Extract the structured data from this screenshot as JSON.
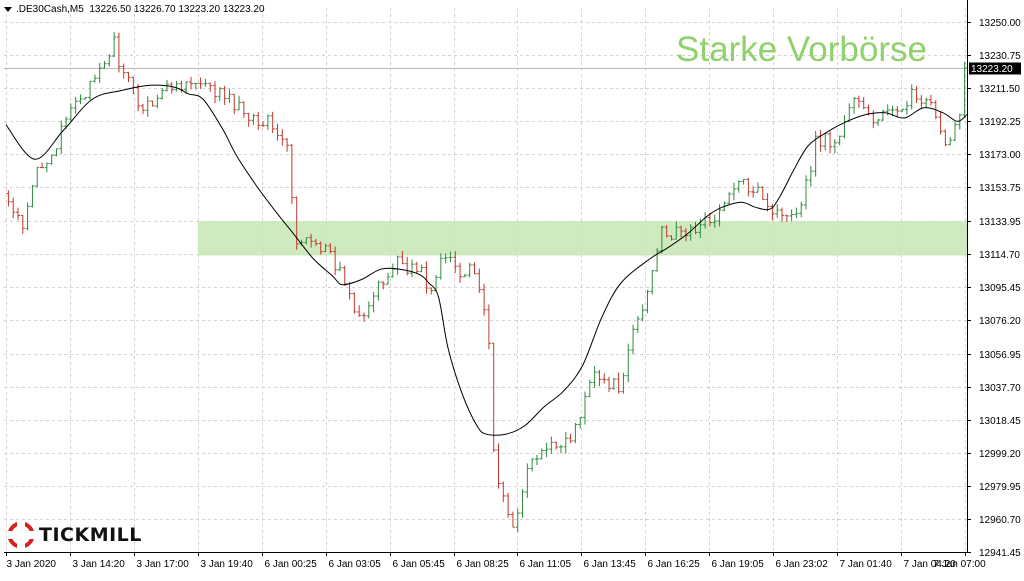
{
  "header": {
    "symbol": ".DE30Cash,M5",
    "ohlc": "13226.50 13226.70 13223.20 13223.20"
  },
  "annotation": {
    "text": "Starke Vorbörse",
    "color": "#8fd16a"
  },
  "brand": {
    "name": "TICKMILL",
    "logo_icon": "tickmill-logo-icon",
    "logo_color": "#d6231f"
  },
  "chart_data": {
    "type": "candlestick",
    "timeframe": "M5",
    "ylim": [
      12941.45,
      13258
    ],
    "grid": true,
    "y_ticks": [
      {
        "value": 13250.0,
        "label": "13250.00"
      },
      {
        "value": 13230.75,
        "label": "13230.75"
      },
      {
        "value": 13211.5,
        "label": "13211.50"
      },
      {
        "value": 13192.25,
        "label": "13192.25"
      },
      {
        "value": 13173.0,
        "label": "13173.00"
      },
      {
        "value": 13153.75,
        "label": "13153.75"
      },
      {
        "value": 13133.95,
        "label": "13133.95"
      },
      {
        "value": 13114.7,
        "label": "13114.70"
      },
      {
        "value": 13095.45,
        "label": "13095.45"
      },
      {
        "value": 13076.2,
        "label": "13076.20"
      },
      {
        "value": 13056.95,
        "label": "13056.95"
      },
      {
        "value": 13037.7,
        "label": "13037.70"
      },
      {
        "value": 13018.45,
        "label": "13018.45"
      },
      {
        "value": 12999.2,
        "label": "12999.20"
      },
      {
        "value": 12979.95,
        "label": "12979.95"
      },
      {
        "value": 12960.7,
        "label": "12960.70"
      },
      {
        "value": 12941.45,
        "label": "12941.45"
      }
    ],
    "x_labels": [
      "3 Jan 2020",
      "3 Jan 14:20",
      "3 Jan 17:00",
      "3 Jan 19:40",
      "6 Jan 00:25",
      "6 Jan 03:05",
      "6 Jan 05:45",
      "6 Jan 08:25",
      "6 Jan 11:05",
      "6 Jan 13:45",
      "6 Jan 16:25",
      "6 Jan 19:05",
      "6 Jan 23:02",
      "7 Jan 01:40",
      "7 Jan 04:20",
      "7 Jan 07:00"
    ],
    "current_price": {
      "value": 13223.2,
      "label": "13223.20"
    },
    "zone": {
      "low": 13114,
      "high": 13134,
      "color": "#c7e6b4",
      "starts_at": "3 Jan 19:40"
    },
    "close_path": [
      [
        0,
        13150
      ],
      [
        4,
        13128
      ],
      [
        7,
        13165
      ],
      [
        11,
        13178
      ],
      [
        15,
        13205
      ],
      [
        19,
        13214
      ],
      [
        23,
        13238
      ],
      [
        25,
        13218
      ],
      [
        29,
        13200
      ],
      [
        33,
        13210
      ],
      [
        37,
        13215
      ],
      [
        41,
        13212
      ],
      [
        45,
        13208
      ],
      [
        49,
        13200
      ],
      [
        53,
        13194
      ],
      [
        56,
        13190
      ],
      [
        59,
        13176
      ],
      [
        61,
        13118
      ],
      [
        64,
        13126
      ],
      [
        66,
        13120
      ],
      [
        68,
        13112
      ],
      [
        71,
        13100
      ],
      [
        73,
        13085
      ],
      [
        75,
        13082
      ],
      [
        77,
        13090
      ],
      [
        79,
        13098
      ],
      [
        82,
        13112
      ],
      [
        84,
        13108
      ],
      [
        87,
        13104
      ],
      [
        89,
        13092
      ],
      [
        91,
        13110
      ],
      [
        93,
        13113
      ],
      [
        95,
        13104
      ],
      [
        97,
        13110
      ],
      [
        99,
        13096
      ],
      [
        101,
        13060
      ],
      [
        102,
        13000
      ],
      [
        104,
        12970
      ],
      [
        106,
        12955
      ],
      [
        108,
        12980
      ],
      [
        110,
        12994
      ],
      [
        113,
        13000
      ],
      [
        116,
        13006
      ],
      [
        119,
        13012
      ],
      [
        121,
        13030
      ],
      [
        123,
        13050
      ],
      [
        126,
        13037
      ],
      [
        129,
        13040
      ],
      [
        131,
        13070
      ],
      [
        133,
        13082
      ],
      [
        135,
        13105
      ],
      [
        137,
        13133
      ],
      [
        139,
        13125
      ],
      [
        142,
        13128
      ],
      [
        145,
        13130
      ],
      [
        148,
        13138
      ],
      [
        150,
        13142
      ],
      [
        152,
        13155
      ],
      [
        155,
        13154
      ],
      [
        157,
        13156
      ],
      [
        159,
        13143
      ],
      [
        161,
        13138
      ],
      [
        163,
        13141
      ],
      [
        165,
        13140
      ],
      [
        167,
        13155
      ],
      [
        169,
        13180
      ],
      [
        171,
        13183
      ],
      [
        173,
        13177
      ],
      [
        175,
        13193
      ],
      [
        177,
        13206
      ],
      [
        179,
        13198
      ],
      [
        181,
        13192
      ],
      [
        183,
        13197
      ],
      [
        185,
        13195
      ],
      [
        187,
        13203
      ],
      [
        189,
        13207
      ],
      [
        191,
        13202
      ],
      [
        193,
        13200
      ],
      [
        195,
        13183
      ],
      [
        197,
        13182
      ],
      [
        199,
        13200
      ],
      [
        200,
        13223.2
      ]
    ],
    "moving_average": [
      [
        0,
        13190
      ],
      [
        6,
        13170
      ],
      [
        12,
        13187
      ],
      [
        18,
        13205
      ],
      [
        24,
        13210
      ],
      [
        30,
        13213
      ],
      [
        35,
        13212
      ],
      [
        38,
        13208
      ],
      [
        41,
        13205
      ],
      [
        45,
        13188
      ],
      [
        48,
        13172
      ],
      [
        52,
        13155
      ],
      [
        56,
        13140
      ],
      [
        60,
        13126
      ],
      [
        64,
        13112
      ],
      [
        68,
        13102
      ],
      [
        70,
        13097
      ],
      [
        74,
        13100
      ],
      [
        78,
        13106
      ],
      [
        82,
        13106
      ],
      [
        86,
        13103
      ],
      [
        88,
        13098
      ],
      [
        90,
        13090
      ],
      [
        92,
        13060
      ],
      [
        95,
        13033
      ],
      [
        98,
        13015
      ],
      [
        100,
        13010
      ],
      [
        104,
        13010
      ],
      [
        108,
        13015
      ],
      [
        112,
        13026
      ],
      [
        116,
        13035
      ],
      [
        120,
        13050
      ],
      [
        124,
        13078
      ],
      [
        128,
        13098
      ],
      [
        134,
        13112
      ],
      [
        138,
        13119
      ],
      [
        142,
        13127
      ],
      [
        146,
        13137
      ],
      [
        149,
        13142
      ],
      [
        153,
        13145
      ],
      [
        156,
        13142
      ],
      [
        159,
        13141
      ],
      [
        161,
        13148
      ],
      [
        164,
        13164
      ],
      [
        167,
        13178
      ],
      [
        171,
        13186
      ],
      [
        175,
        13192
      ],
      [
        179,
        13196
      ],
      [
        183,
        13197
      ],
      [
        187,
        13194
      ],
      [
        191,
        13200
      ],
      [
        195,
        13197
      ],
      [
        198,
        13192
      ],
      [
        200,
        13196
      ]
    ],
    "colors": {
      "up": "#2e8b3d",
      "down": "#c0392b",
      "ma": "#000000",
      "grid": "#d4d4d4",
      "axis": "#000000"
    }
  }
}
